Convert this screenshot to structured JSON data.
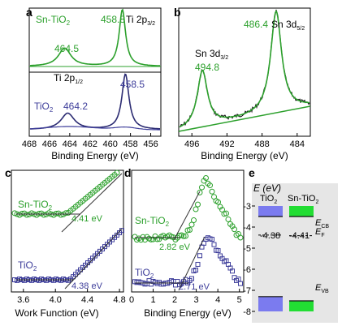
{
  "colors": {
    "green": "#2ca02c",
    "navy": "#2b2b72",
    "blue": "#3d3d9a",
    "black": "#000000",
    "panel_e_bg": "#e6e6e6",
    "band_blue": "#7b7bef",
    "band_green": "#22dd33"
  },
  "panel_labels": [
    "a",
    "b",
    "c",
    "d",
    "e"
  ],
  "chart_data": [
    {
      "panel": "a",
      "type": "line",
      "xlabel": "Binding Energy (eV)",
      "xlim": [
        468,
        455
      ],
      "xticks": [
        468,
        466,
        464,
        462,
        460,
        458,
        456
      ],
      "series": [
        {
          "name": "Sn-TiO2",
          "peaks": [
            {
              "x": 464.5,
              "y": 0.32
            },
            {
              "x": 458.8,
              "y": 1.0
            }
          ]
        },
        {
          "name": "TiO2",
          "peaks": [
            {
              "x": 464.2,
              "y": 0.28
            },
            {
              "x": 458.5,
              "y": 0.95
            }
          ]
        }
      ],
      "series_labels": {
        "sn_base": "Sn-TiO",
        "sn_sub": "2",
        "ti_base": "TiO",
        "ti_sub": "2"
      },
      "annotations": {
        "sn_peak2": "458.8",
        "ti2p32_base": "Ti 2p",
        "ti2p32_sub": "3/2",
        "sn_peak1": "464.5",
        "ti2p12_base": "Ti 2p",
        "ti2p12_sub": "1/2",
        "ti_peak2": "458.5",
        "ti_peak1": "464.2"
      }
    },
    {
      "panel": "b",
      "type": "line",
      "xlabel": "Binding Energy (eV)",
      "xlim": [
        497.5,
        482.5
      ],
      "xticks": [
        496,
        492,
        488,
        484
      ],
      "series": [
        {
          "name": "Sn 3d",
          "peaks": [
            {
              "x": 494.8,
              "y": 0.55
            },
            {
              "x": 486.4,
              "y": 1.0
            }
          ]
        }
      ],
      "annotations": {
        "sn3d52_value": "486.4",
        "sn3d52_base": "Sn 3d",
        "sn3d52_sub": "5/2",
        "sn3d32_base": "Sn 3d",
        "sn3d32_sub": "3/2",
        "sn3d32_value": "494.8"
      }
    },
    {
      "panel": "c",
      "type": "scatter",
      "xlabel": "Work Function (eV)",
      "xlim": [
        3.45,
        4.85
      ],
      "xticks": [
        3.6,
        4.0,
        4.4,
        4.8
      ],
      "xtick_labels": [
        "3.6",
        "4.0",
        "4.4",
        "4.8"
      ],
      "series": [
        {
          "name": "Sn-TiO2",
          "onset": 4.41
        },
        {
          "name": "TiO2",
          "onset": 4.38
        }
      ],
      "series_labels": {
        "sn_base": "Sn-TiO",
        "sn_sub": "2",
        "ti_base": "TiO",
        "ti_sub": "2"
      },
      "annotations": {
        "sn_wf": "4.41 eV",
        "ti_wf": "4.38 eV"
      }
    },
    {
      "panel": "d",
      "type": "scatter",
      "xlabel": "Binding Energy (eV)",
      "xlim": [
        0,
        5.2
      ],
      "xticks": [
        0,
        1,
        2,
        3,
        4,
        5
      ],
      "xtick_labels": [
        "0",
        "1",
        "2",
        "3",
        "4",
        "5"
      ],
      "series": [
        {
          "name": "Sn-TiO2",
          "onset": 2.82
        },
        {
          "name": "TiO2",
          "onset": 2.71
        }
      ],
      "series_labels": {
        "sn_base": "Sn-TiO",
        "sn_sub": "2",
        "ti_base": "TiO",
        "ti_sub": "2"
      },
      "annotations": {
        "sn_vb": "2.82 eV",
        "ti_vb": "2.71 eV"
      }
    },
    {
      "panel": "e",
      "type": "bar",
      "ylabel": "E (eV)",
      "ylim": [
        -8,
        -2.7
      ],
      "yticks": [
        -3,
        -4,
        -5,
        -6,
        -7,
        -8
      ],
      "ytick_labels": [
        "-3",
        "-4",
        "-5",
        "-6",
        "-7",
        "-8"
      ],
      "columns": [
        {
          "name": "TiO2",
          "cb": -3.5,
          "vb": -7.3,
          "ef": -4.38
        },
        {
          "name": "Sn-TiO2",
          "cb": -3.5,
          "vb": -7.5,
          "ef": -4.41
        }
      ],
      "column_labels": {
        "ti_base": "TiO",
        "ti_sub": "2",
        "sn_base": "Sn-TiO",
        "sn_sub": "2"
      },
      "annotations": {
        "ti_ef": "-4.38",
        "sn_ef": "-4.41",
        "ecb_base": "E",
        "ecb_sub": "CB",
        "ef_base": "E",
        "ef_sub": "F",
        "evb_base": "E",
        "evb_sub": "VB"
      }
    }
  ]
}
